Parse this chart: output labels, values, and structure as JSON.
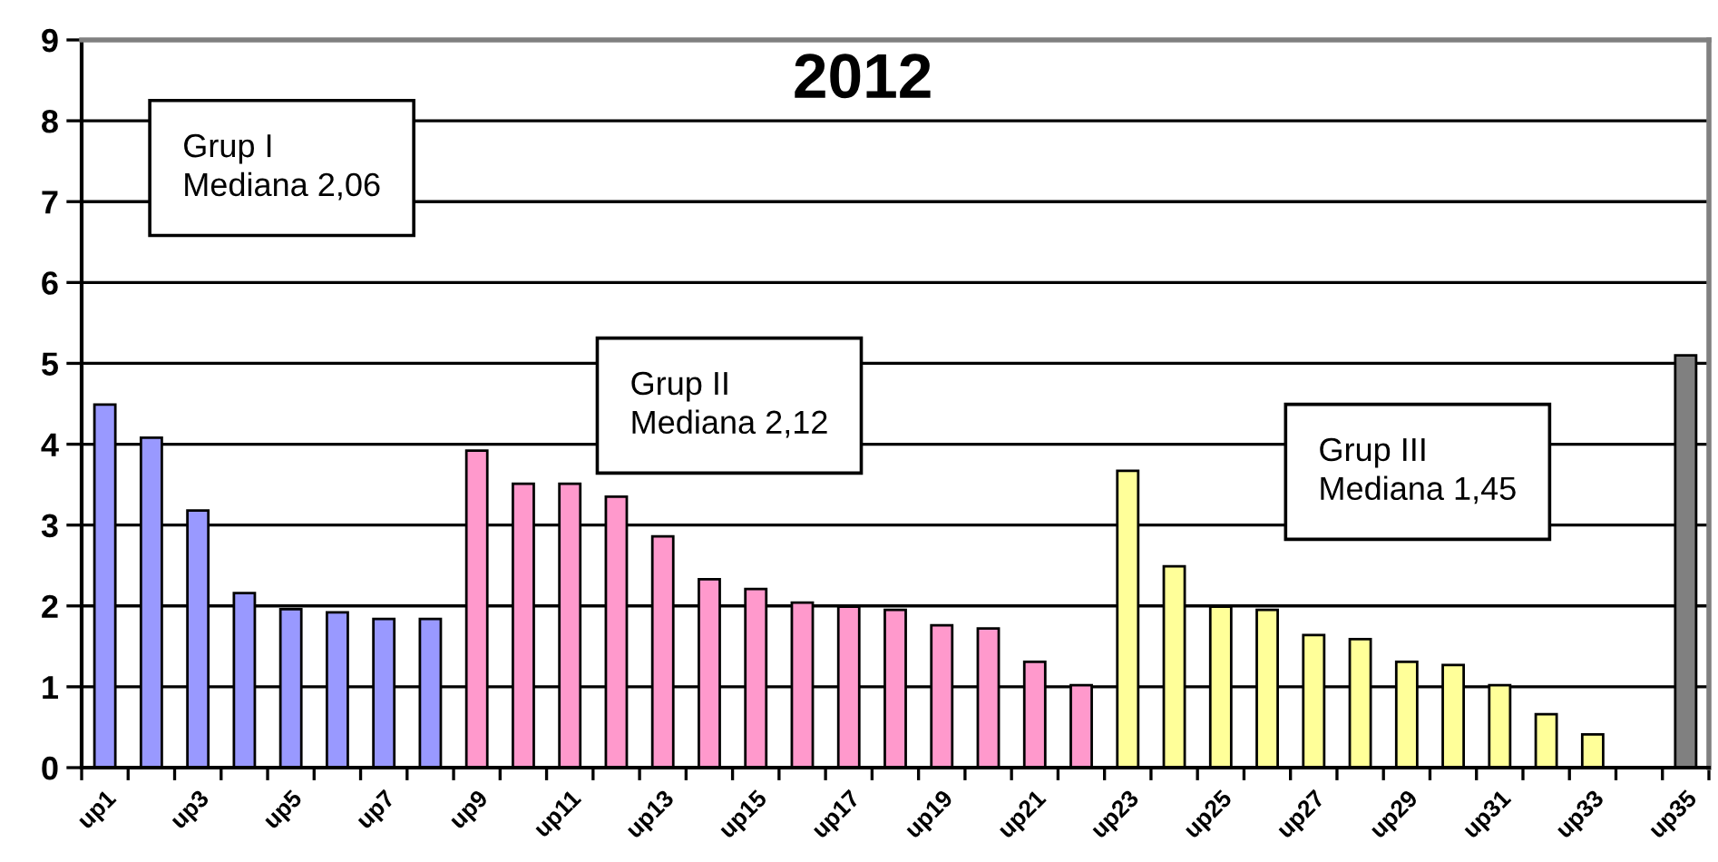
{
  "chart_data": {
    "type": "bar",
    "title": "2012",
    "categories": [
      "up1",
      null,
      "up3",
      null,
      "up5",
      null,
      "up7",
      null,
      "up9",
      null,
      "up11",
      null,
      "up13",
      null,
      "up15",
      null,
      "up17",
      null,
      "up19",
      null,
      "up21",
      null,
      "up23",
      null,
      "up25",
      null,
      "up27",
      null,
      "up29",
      null,
      "up31",
      null,
      "up33",
      null,
      "up35"
    ],
    "values": [
      4.49,
      4.08,
      3.18,
      2.16,
      1.96,
      1.92,
      1.84,
      1.84,
      3.92,
      3.51,
      3.51,
      3.35,
      2.86,
      2.33,
      2.21,
      2.04,
      1.99,
      1.95,
      1.76,
      1.72,
      1.31,
      1.02,
      3.67,
      2.49,
      1.99,
      1.95,
      1.64,
      1.59,
      1.31,
      1.27,
      1.02,
      0.66,
      0.41,
      null,
      5.1
    ],
    "colors": [
      "#9999ff",
      "#9999ff",
      "#9999ff",
      "#9999ff",
      "#9999ff",
      "#9999ff",
      "#9999ff",
      "#9999ff",
      "#ff99cc",
      "#ff99cc",
      "#ff99cc",
      "#ff99cc",
      "#ff99cc",
      "#ff99cc",
      "#ff99cc",
      "#ff99cc",
      "#ff99cc",
      "#ff99cc",
      "#ff99cc",
      "#ff99cc",
      "#ff99cc",
      "#ff99cc",
      "#ffff99",
      "#ffff99",
      "#ffff99",
      "#ffff99",
      "#ffff99",
      "#ffff99",
      "#ffff99",
      "#ffff99",
      "#ffff99",
      "#ffff99",
      "#ffff99",
      null,
      "#808080"
    ],
    "ylim": [
      0,
      9
    ],
    "yticks": [
      0,
      1,
      2,
      3,
      4,
      5,
      6,
      7,
      8,
      9
    ],
    "grid": "y",
    "annotations": [
      "Grup I\nMediana 2,06",
      "Grup II\nMediana 2,12",
      "Grup III\nMediana 1,45"
    ]
  }
}
